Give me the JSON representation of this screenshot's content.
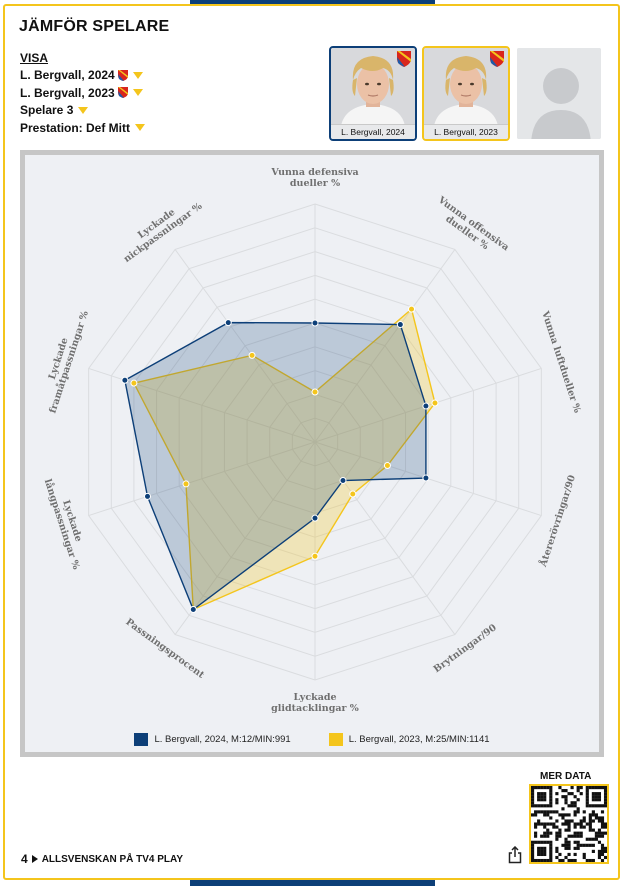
{
  "title": "JÄMFÖR SPELARE",
  "menu": {
    "header": "VISA",
    "player1": "L. Bergvall, 2024",
    "player2": "L. Bergvall, 2023",
    "player3": "Spelare 3",
    "performance": "Prestation: Def Mitt"
  },
  "cards": [
    {
      "label": "L. Bergvall, 2024"
    },
    {
      "label": "L. Bergvall, 2023"
    },
    {
      "label": ""
    }
  ],
  "colors": {
    "accent": "#f4c51c",
    "navy": "#0d3f78",
    "gold": "#f4c51c"
  },
  "chart_data": {
    "type": "radar",
    "axes": [
      "Vunna defensiva dueller %",
      "Vunna offensiva dueller %",
      "Vunna luftdueller %",
      "Återerövringar/90",
      "Brytningar/90",
      "Lyckade glidtacklingar %",
      "Passningsprocent",
      "Lyckade längpassningar %",
      "Lyckade framåtpassningar %",
      "Lyckade nickpassningar %"
    ],
    "axis_label_lines": [
      [
        "Vunna defensiva",
        "dueller %"
      ],
      [
        "Vunna offensiva",
        "dueller %"
      ],
      [
        "Vunna luftdueller %"
      ],
      [
        "Återerövringar/90"
      ],
      [
        "Brytningar/90"
      ],
      [
        "Lyckade",
        "glidtacklingar %"
      ],
      [
        "Passningsprocent"
      ],
      [
        "Lyckade",
        "långpassningar %"
      ],
      [
        "Lyckade",
        "framåtpassningar %"
      ],
      [
        "Lyckade",
        "nickpassningar %"
      ]
    ],
    "range": [
      0,
      10
    ],
    "rings": 10,
    "series": [
      {
        "name": "L. Bergvall, 2024, M:12/MIN:991",
        "color": "#0d3f78",
        "values": [
          5.0,
          6.1,
          4.9,
          4.9,
          2.0,
          3.2,
          8.7,
          7.4,
          8.4,
          6.2
        ]
      },
      {
        "name": "L. Bergvall, 2023, M:25/MIN:1141",
        "color": "#f4c51c",
        "values": [
          2.1,
          6.9,
          5.3,
          3.2,
          2.7,
          4.8,
          8.7,
          5.7,
          8.0,
          4.5
        ]
      }
    ]
  },
  "more_data_label": "MER DATA",
  "footer": {
    "number": "4",
    "text": "ALLSVENSKAN PÅ TV4 PLAY"
  }
}
